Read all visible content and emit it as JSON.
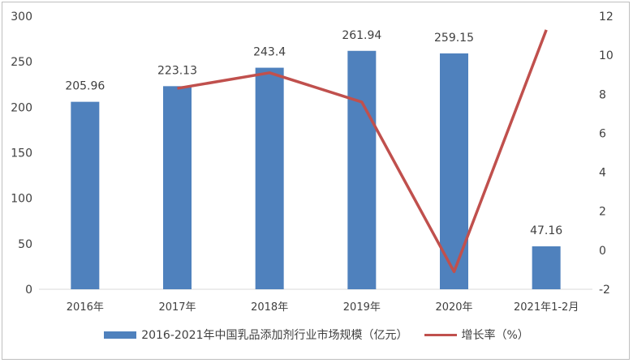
{
  "chart_data": {
    "type": "bar",
    "categories": [
      "2016年",
      "2017年",
      "2018年",
      "2019年",
      "2020年",
      "2021年1-2月"
    ],
    "series": [
      {
        "name": "2016-2021年中国乳品添加剂行业市场规模（亿元）",
        "type": "bar",
        "axis": "left",
        "values": [
          205.96,
          223.13,
          243.4,
          261.94,
          259.15,
          47.16
        ],
        "data_labels": [
          "205.96",
          "223.13",
          "243.4",
          "261.94",
          "259.15",
          "47.16"
        ],
        "color": "#4f81bd"
      },
      {
        "name": "增长率（%）",
        "type": "line",
        "axis": "right",
        "values": [
          null,
          8.3,
          9.1,
          7.6,
          -1.1,
          11.3
        ],
        "color": "#c0504d"
      }
    ],
    "y_left": {
      "min": 0,
      "max": 300,
      "step": 50,
      "ticks": [
        "0",
        "50",
        "100",
        "150",
        "200",
        "250",
        "300"
      ]
    },
    "y_right": {
      "min": -2,
      "max": 12,
      "step": 2,
      "ticks": [
        "-2",
        "0",
        "2",
        "4",
        "6",
        "8",
        "10",
        "12"
      ]
    },
    "grid": false,
    "legend_position": "bottom"
  }
}
